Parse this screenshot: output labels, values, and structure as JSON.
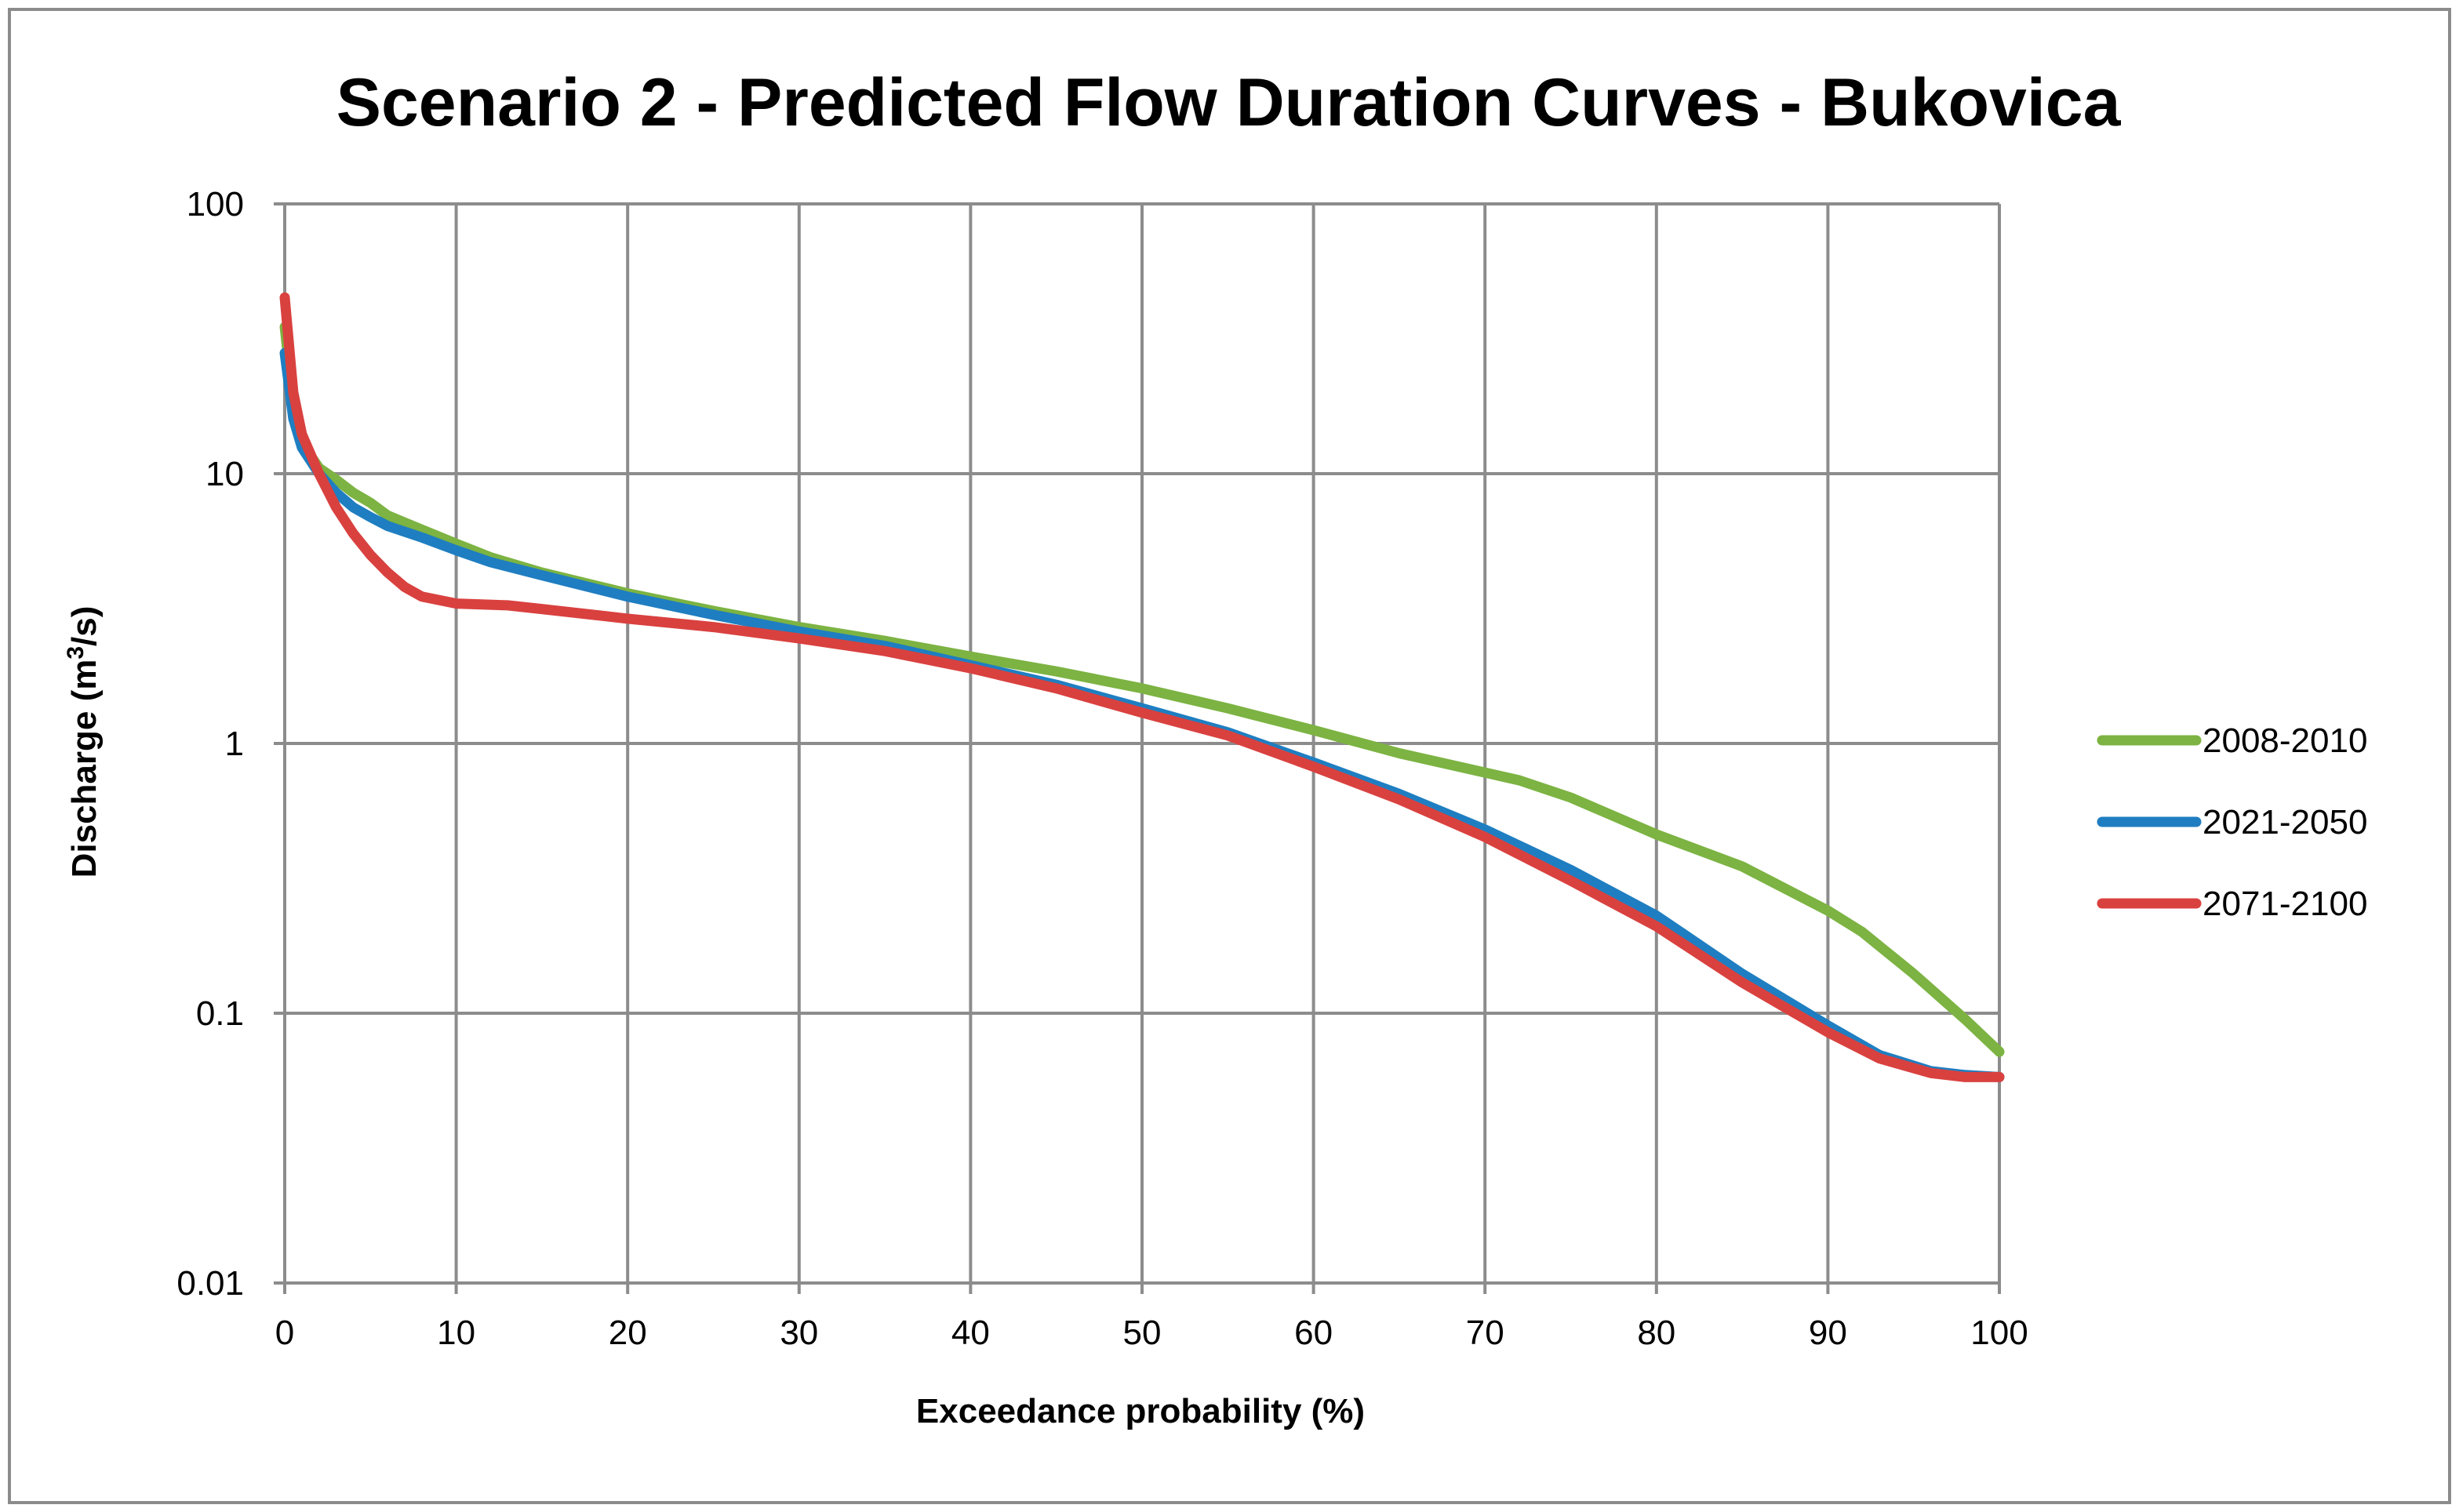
{
  "chart_data": {
    "type": "line",
    "title": "Scenario 2 - Predicted Flow Duration Curves - Bukovica",
    "xlabel": "Exceedance probability (%)",
    "ylabel_main": "Discharge (m",
    "ylabel_sup": "3",
    "ylabel_tail": "/s)",
    "xlim": [
      0,
      100
    ],
    "ylim": [
      0.01,
      100
    ],
    "yscale": "log",
    "grid": true,
    "legend_position": "right",
    "x_ticks": [
      "0",
      "10",
      "20",
      "30",
      "40",
      "50",
      "60",
      "70",
      "80",
      "90",
      "100"
    ],
    "y_ticks": [
      "0.01",
      "0.1",
      "1",
      "10",
      "100"
    ],
    "series": [
      {
        "name": "2008-2010",
        "color": "#7cb342",
        "x": [
          0,
          0.5,
          1,
          2,
          3,
          4,
          5,
          6,
          8,
          10,
          12,
          15,
          20,
          25,
          30,
          35,
          40,
          45,
          50,
          55,
          60,
          65,
          70,
          72,
          75,
          80,
          85,
          90,
          92,
          95,
          98,
          100
        ],
        "y": [
          35,
          18,
          13,
          10.5,
          9.5,
          8.5,
          7.8,
          7.0,
          6.2,
          5.5,
          4.9,
          4.3,
          3.6,
          3.1,
          2.7,
          2.4,
          2.1,
          1.85,
          1.6,
          1.35,
          1.12,
          0.92,
          0.78,
          0.73,
          0.63,
          0.46,
          0.35,
          0.24,
          0.2,
          0.14,
          0.095,
          0.072
        ]
      },
      {
        "name": "2021-2050",
        "color": "#1f7ec1",
        "x": [
          0,
          0.5,
          1,
          2,
          3,
          4,
          5,
          6,
          8,
          10,
          12,
          15,
          20,
          25,
          30,
          35,
          40,
          45,
          50,
          55,
          60,
          65,
          70,
          75,
          80,
          85,
          90,
          93,
          96,
          98,
          100
        ],
        "y": [
          28,
          16,
          12.5,
          10,
          8.5,
          7.5,
          6.9,
          6.4,
          5.8,
          5.2,
          4.7,
          4.2,
          3.5,
          3.0,
          2.6,
          2.3,
          1.95,
          1.65,
          1.35,
          1.1,
          0.85,
          0.65,
          0.48,
          0.34,
          0.23,
          0.14,
          0.09,
          0.07,
          0.061,
          0.059,
          0.058
        ]
      },
      {
        "name": "2071-2100",
        "color": "#d9413f",
        "x": [
          0,
          0.5,
          1,
          2,
          3,
          4,
          5,
          6,
          7,
          8,
          10,
          13,
          15,
          20,
          25,
          30,
          35,
          40,
          45,
          50,
          55,
          60,
          65,
          70,
          75,
          80,
          85,
          90,
          93,
          96,
          98,
          100
        ],
        "y": [
          45,
          20,
          14,
          10,
          7.5,
          6,
          5,
          4.3,
          3.8,
          3.5,
          3.3,
          3.25,
          3.15,
          2.9,
          2.7,
          2.45,
          2.2,
          1.9,
          1.6,
          1.3,
          1.07,
          0.82,
          0.62,
          0.45,
          0.31,
          0.21,
          0.13,
          0.085,
          0.068,
          0.06,
          0.058,
          0.058
        ]
      }
    ]
  }
}
